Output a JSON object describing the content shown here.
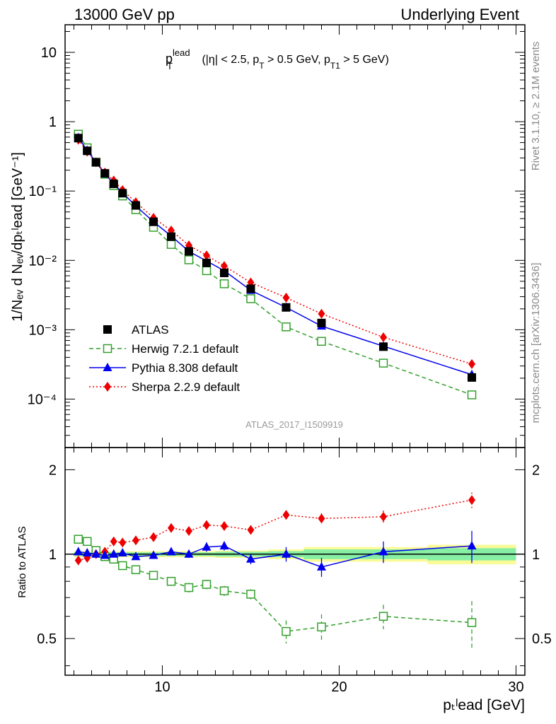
{
  "header": {
    "left": "13000 GeV pp",
    "right": "Underlying Event"
  },
  "annotation": {
    "title_main": "p",
    "title_sup": "lead",
    "title_sub": "T",
    "cuts_a": " (|η| < 2.5, p",
    "cuts_sub_a": "T",
    "cuts_b": " > 0.5 GeV, p",
    "cuts_sub_b": "T1",
    "cuts_c": " > 5 GeV)",
    "analysis_id": "ATLAS_2017_I1509919"
  },
  "side_text": {
    "rivet": "Rivet 3.1.10, ≥ 2.1M events",
    "mcplots": "mcplots.cern.ch [arXiv:1306.3436]"
  },
  "axis_labels": {
    "main_ylabel": "1/Nₑᵥ d Nₑᵥ/dpₜˡead [GeV⁻¹]",
    "ratio_ylabel": "Ratio to ATLAS",
    "xlabel": "pₜˡead [GeV]"
  },
  "tick_labels": {
    "main_y": [
      {
        "value": 10,
        "label": "10"
      },
      {
        "value": 1,
        "label": "1"
      },
      {
        "value": 0.1,
        "label": "10⁻¹"
      },
      {
        "value": 0.01,
        "label": "10⁻²"
      },
      {
        "value": 0.001,
        "label": "10⁻³"
      },
      {
        "value": 0.0001,
        "label": "10⁻⁴"
      }
    ],
    "ratio_y": [
      {
        "value": 2,
        "label": "2"
      },
      {
        "value": 1,
        "label": "1"
      },
      {
        "value": 0.5,
        "label": "0.5"
      }
    ],
    "x": [
      {
        "value": 10,
        "label": "10"
      },
      {
        "value": 20,
        "label": "20"
      },
      {
        "value": 30,
        "label": "30"
      }
    ]
  },
  "colors": {
    "atlas": "#000000",
    "herwig": "#33a02c",
    "pythia": "#0000ee",
    "sherpa": "#ee0000",
    "band_inner": "#86efa4",
    "band_outer": "#fafa96"
  },
  "chart_data": {
    "type": "line",
    "main": {
      "yscale": "log",
      "xlim": [
        4.5,
        30.5
      ],
      "ylim": [
        2e-05,
        25
      ],
      "legend_placement": "lower-left",
      "series": [
        {
          "name": "ATLAS",
          "marker": "square-filled",
          "x": [
            5.25,
            5.75,
            6.25,
            6.75,
            7.25,
            7.75,
            8.5,
            9.5,
            10.5,
            11.5,
            12.5,
            13.5,
            15.0,
            17.0,
            19.0,
            22.5,
            27.5
          ],
          "y": [
            0.58,
            0.38,
            0.26,
            0.18,
            0.127,
            0.093,
            0.062,
            0.036,
            0.022,
            0.0135,
            0.0092,
            0.0066,
            0.0039,
            0.0021,
            0.00125,
            0.00057,
            0.000205
          ]
        },
        {
          "name": "Herwig 7.2.1 default",
          "marker": "square-open",
          "line": "dashed",
          "x": [
            5.25,
            5.75,
            6.25,
            6.75,
            7.25,
            7.75,
            8.5,
            9.5,
            10.5,
            11.5,
            12.5,
            13.5,
            15.0,
            17.0,
            19.0,
            22.5,
            27.5
          ],
          "y": [
            0.66,
            0.42,
            0.26,
            0.175,
            0.12,
            0.085,
            0.054,
            0.03,
            0.017,
            0.0102,
            0.0071,
            0.0046,
            0.0028,
            0.0011,
            0.00068,
            0.00033,
            0.000115
          ]
        },
        {
          "name": "Pythia 8.308 default",
          "marker": "triangle-filled",
          "line": "solid",
          "x": [
            5.25,
            5.75,
            6.25,
            6.75,
            7.25,
            7.75,
            8.5,
            9.5,
            10.5,
            11.5,
            12.5,
            13.5,
            15.0,
            17.0,
            19.0,
            22.5,
            27.5
          ],
          "y": [
            0.59,
            0.385,
            0.26,
            0.179,
            0.128,
            0.094,
            0.061,
            0.036,
            0.0225,
            0.0135,
            0.0098,
            0.0071,
            0.0037,
            0.0021,
            0.00113,
            0.00058,
            0.000225
          ]
        },
        {
          "name": "Sherpa 2.2.9 default",
          "marker": "diamond-filled",
          "line": "dotted",
          "x": [
            5.25,
            5.75,
            6.25,
            6.75,
            7.25,
            7.75,
            8.5,
            9.5,
            10.5,
            11.5,
            12.5,
            13.5,
            15.0,
            17.0,
            19.0,
            22.5,
            27.5
          ],
          "y": [
            0.55,
            0.37,
            0.26,
            0.185,
            0.142,
            0.103,
            0.069,
            0.041,
            0.027,
            0.0165,
            0.0118,
            0.0083,
            0.0048,
            0.0029,
            0.0017,
            0.00078,
            0.00032
          ]
        }
      ]
    },
    "ratio": {
      "yscale": "log",
      "xlim": [
        4.5,
        30.5
      ],
      "ylim": [
        0.37,
        2.4
      ],
      "reference": 1,
      "band_edges": [
        5.0,
        5.5,
        6.0,
        6.5,
        7.0,
        7.5,
        8.0,
        9.0,
        10.0,
        11.0,
        12.0,
        13.0,
        14.0,
        16.0,
        18.0,
        20.0,
        25.0,
        30.0
      ],
      "band_inner": [
        0.015,
        0.015,
        0.015,
        0.015,
        0.015,
        0.015,
        0.015,
        0.015,
        0.015,
        0.015,
        0.015,
        0.02,
        0.02,
        0.025,
        0.04,
        0.04,
        0.05
      ],
      "band_outer": [
        0.025,
        0.025,
        0.025,
        0.025,
        0.025,
        0.025,
        0.025,
        0.025,
        0.025,
        0.025,
        0.025,
        0.03,
        0.03,
        0.04,
        0.06,
        0.06,
        0.08
      ],
      "series": [
        {
          "name": "Herwig 7.2.1 default",
          "x": [
            5.25,
            5.75,
            6.25,
            6.75,
            7.25,
            7.75,
            8.5,
            9.5,
            10.5,
            11.5,
            12.5,
            13.5,
            15.0,
            17.0,
            19.0,
            22.5,
            27.5
          ],
          "y": [
            1.13,
            1.11,
            1.03,
            0.98,
            0.96,
            0.91,
            0.88,
            0.84,
            0.8,
            0.76,
            0.78,
            0.74,
            0.72,
            0.53,
            0.55,
            0.6,
            0.57
          ],
          "err": [
            0.02,
            0.02,
            0.02,
            0.02,
            0.02,
            0.02,
            0.02,
            0.02,
            0.02,
            0.03,
            0.03,
            0.03,
            0.03,
            0.05,
            0.06,
            0.06,
            0.11
          ]
        },
        {
          "name": "Pythia 8.308 default",
          "x": [
            5.25,
            5.75,
            6.25,
            6.75,
            7.25,
            7.75,
            8.5,
            9.5,
            10.5,
            11.5,
            12.5,
            13.5,
            15.0,
            17.0,
            19.0,
            22.5,
            27.5
          ],
          "y": [
            1.02,
            1.01,
            1.0,
            0.99,
            1.0,
            1.01,
            0.98,
            0.99,
            1.02,
            1.0,
            1.06,
            1.07,
            0.96,
            1.0,
            0.9,
            1.02,
            1.07
          ],
          "err": [
            0.01,
            0.01,
            0.01,
            0.01,
            0.01,
            0.01,
            0.02,
            0.02,
            0.02,
            0.03,
            0.04,
            0.04,
            0.04,
            0.06,
            0.07,
            0.09,
            0.14
          ]
        },
        {
          "name": "Sherpa 2.2.9 default",
          "x": [
            5.25,
            5.75,
            6.25,
            6.75,
            7.25,
            7.75,
            8.5,
            9.5,
            10.5,
            11.5,
            12.5,
            13.5,
            15.0,
            17.0,
            19.0,
            22.5,
            27.5
          ],
          "y": [
            0.95,
            0.97,
            1.0,
            1.02,
            1.11,
            1.1,
            1.12,
            1.15,
            1.24,
            1.21,
            1.27,
            1.26,
            1.22,
            1.38,
            1.34,
            1.36,
            1.56
          ],
          "err": [
            0.01,
            0.01,
            0.01,
            0.01,
            0.02,
            0.02,
            0.02,
            0.02,
            0.03,
            0.03,
            0.04,
            0.04,
            0.04,
            0.05,
            0.06,
            0.07,
            0.1
          ]
        }
      ]
    }
  }
}
